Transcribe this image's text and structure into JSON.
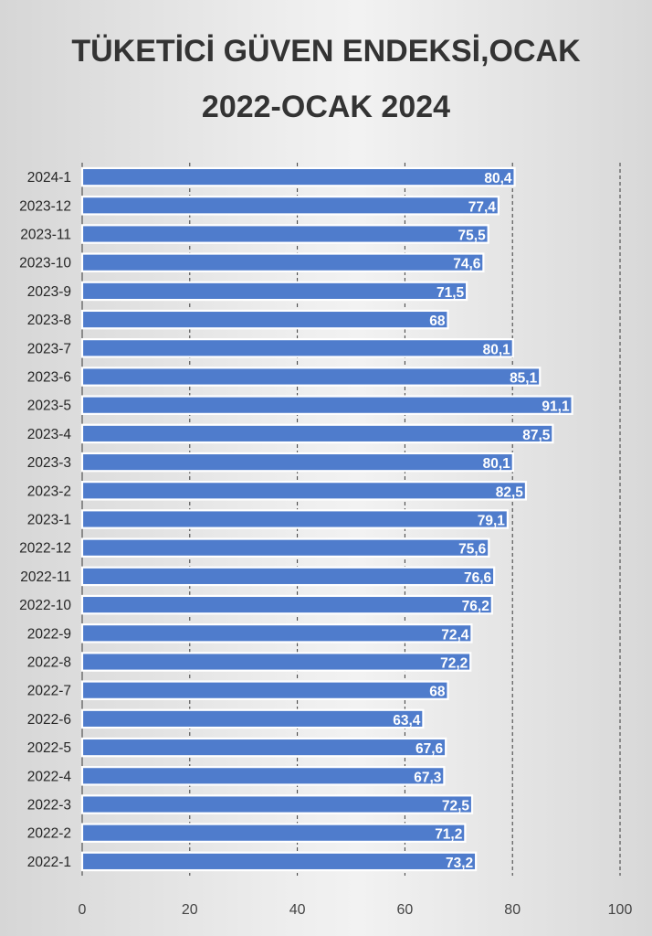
{
  "chart_data": {
    "type": "bar",
    "orientation": "horizontal",
    "title_lines": [
      "TÜKETİCİ GÜVEN ENDEKSİ,OCAK",
      "2022-OCAK 2024"
    ],
    "categories": [
      "2024-1",
      "2023-12",
      "2023-11",
      "2023-10",
      "2023-9",
      "2023-8",
      "2023-7",
      "2023-6",
      "2023-5",
      "2023-4",
      "2023-3",
      "2023-2",
      "2023-1",
      "2022-12",
      "2022-11",
      "2022-10",
      "2022-9",
      "2022-8",
      "2022-7",
      "2022-6",
      "2022-5",
      "2022-4",
      "2022-3",
      "2022-2",
      "2022-1"
    ],
    "values": [
      80.4,
      77.4,
      75.5,
      74.6,
      71.5,
      68,
      80.1,
      85.1,
      91.1,
      87.5,
      80.1,
      82.5,
      79.1,
      75.6,
      76.6,
      76.2,
      72.4,
      72.2,
      68,
      63.4,
      67.6,
      67.3,
      72.5,
      71.2,
      73.2
    ],
    "value_labels": [
      "80,4",
      "77,4",
      "75,5",
      "74,6",
      "71,5",
      "68",
      "80,1",
      "85,1",
      "91,1",
      "87,5",
      "80,1",
      "82,5",
      "79,1",
      "75,6",
      "76,6",
      "76,2",
      "72,4",
      "72,2",
      "68",
      "63,4",
      "67,6",
      "67,3",
      "72,5",
      "71,2",
      "73,2"
    ],
    "xlim": [
      0,
      100
    ],
    "xticks": [
      0,
      20,
      40,
      60,
      80,
      100
    ],
    "xtick_labels": [
      "0",
      "20",
      "40",
      "60",
      "80",
      "100"
    ],
    "xlabel": "",
    "ylabel": "",
    "grid": "vertical-dashed",
    "legend": "none",
    "bar_color": "#4f7ccc",
    "bar_outline": "#ffffff",
    "label_color": "#ffffff",
    "title_color": "#333333"
  }
}
